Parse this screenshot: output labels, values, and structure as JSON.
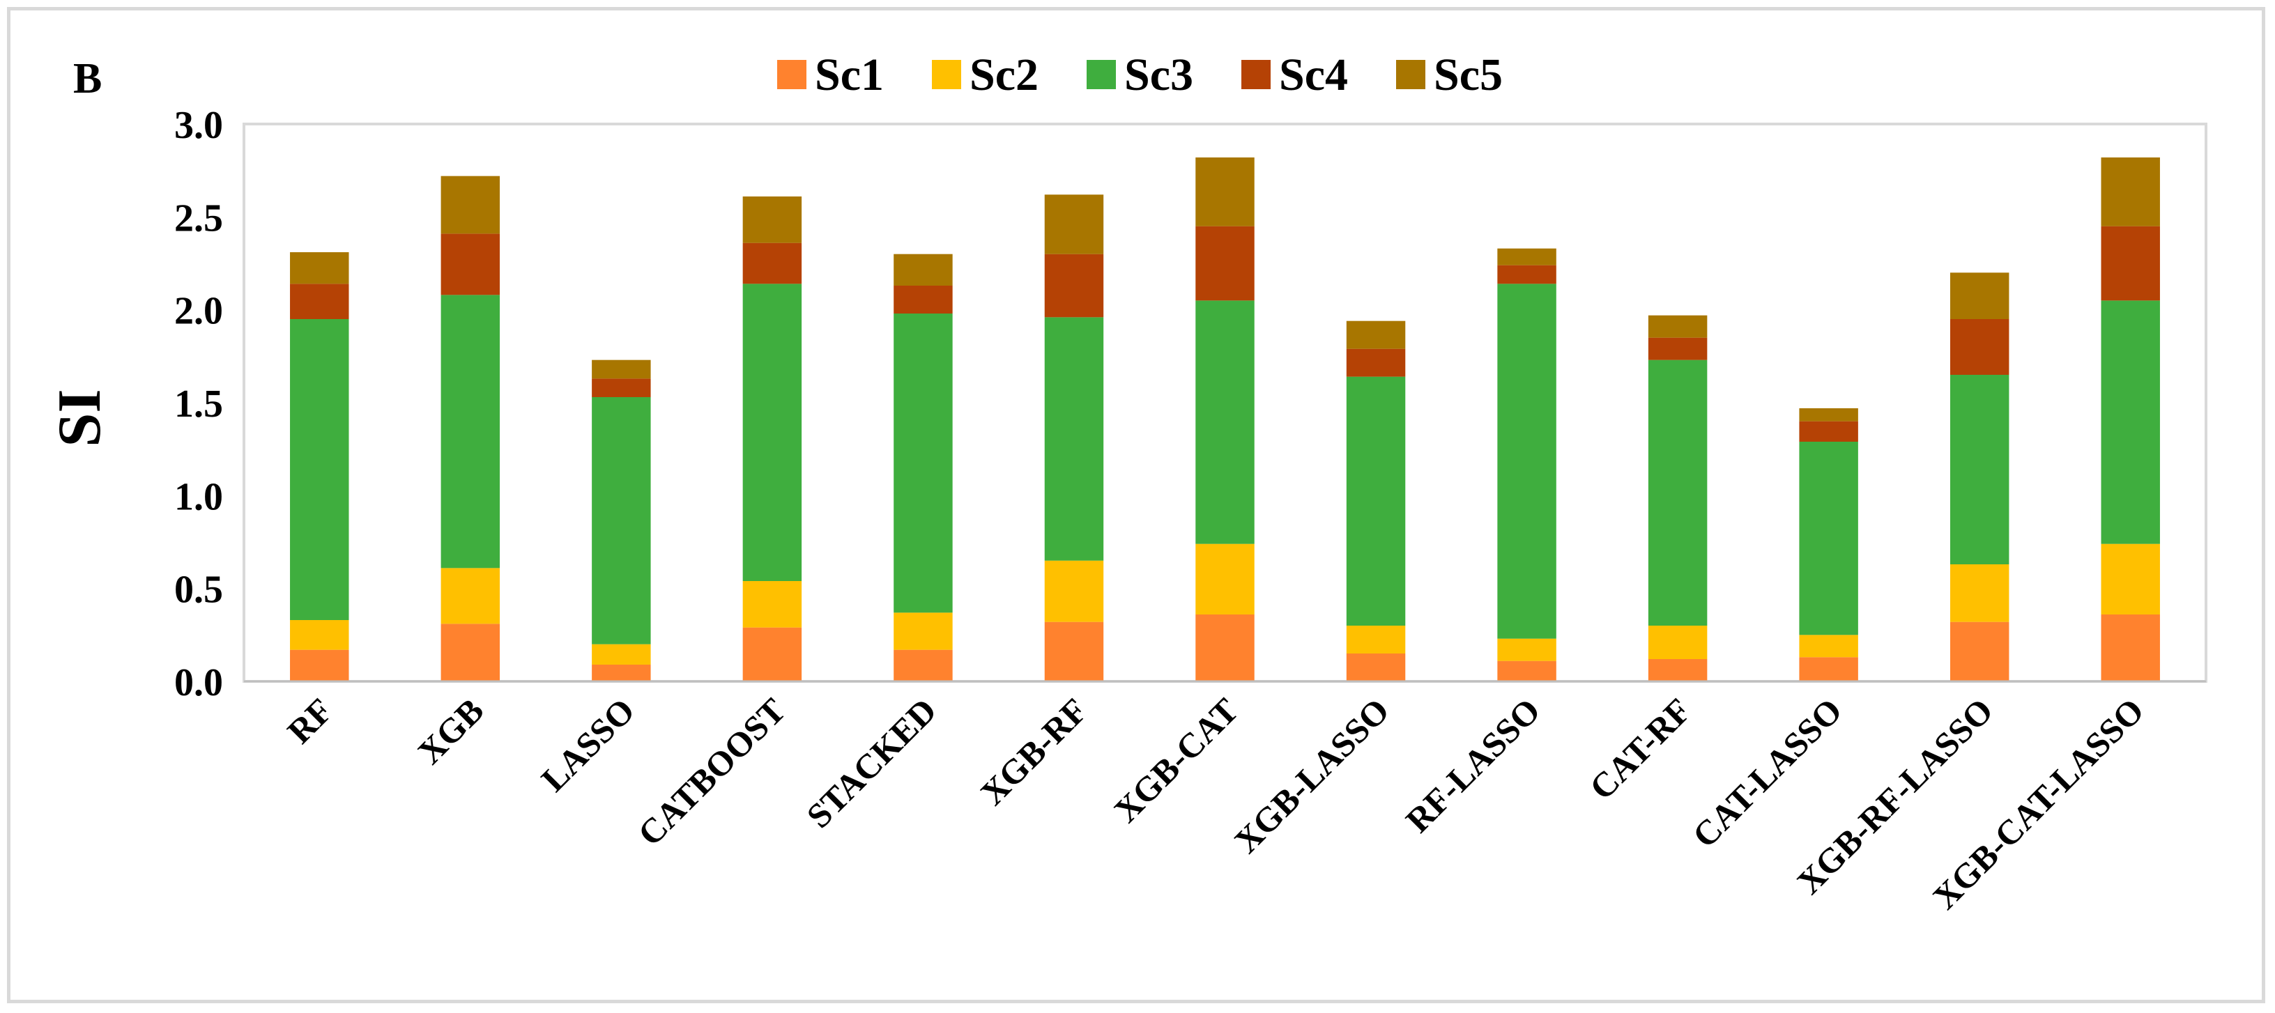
{
  "panel_label": "B",
  "chart_data": {
    "type": "bar",
    "stacked": true,
    "title": "",
    "xlabel": "",
    "ylabel": "SI",
    "ylim": [
      0,
      3.0
    ],
    "yticks": [
      "0.0",
      "0.5",
      "1.0",
      "1.5",
      "2.0",
      "2.5",
      "3.0"
    ],
    "grid": false,
    "legend_position": "top",
    "categories": [
      "RF",
      "XGB",
      "LASSO",
      "CATBOOST",
      "STACKED",
      "XGB-RF",
      "XGB-CAT",
      "XGB-LASSO",
      "RF-LASSO",
      "CAT-RF",
      "CAT-LASSO",
      "XGB-RF-LASSO",
      "XGB-CAT-LASSO"
    ],
    "series": [
      {
        "name": "Sc1",
        "color": "#FF822E",
        "values": [
          0.17,
          0.31,
          0.09,
          0.29,
          0.17,
          0.32,
          0.36,
          0.15,
          0.11,
          0.12,
          0.13,
          0.32,
          0.36
        ]
      },
      {
        "name": "Sc2",
        "color": "#FFC000",
        "values": [
          0.16,
          0.3,
          0.11,
          0.25,
          0.2,
          0.33,
          0.38,
          0.15,
          0.12,
          0.18,
          0.12,
          0.31,
          0.38
        ]
      },
      {
        "name": "Sc3",
        "color": "#3FAE3E",
        "values": [
          1.62,
          1.47,
          1.33,
          1.6,
          1.61,
          1.31,
          1.31,
          1.34,
          1.91,
          1.43,
          1.04,
          1.02,
          1.31
        ]
      },
      {
        "name": "Sc4",
        "color": "#B54205",
        "values": [
          0.19,
          0.33,
          0.1,
          0.22,
          0.15,
          0.34,
          0.4,
          0.15,
          0.1,
          0.12,
          0.11,
          0.3,
          0.4
        ]
      },
      {
        "name": "Sc5",
        "color": "#A87600",
        "values": [
          0.17,
          0.31,
          0.1,
          0.25,
          0.17,
          0.32,
          0.37,
          0.15,
          0.09,
          0.12,
          0.07,
          0.25,
          0.37
        ]
      }
    ]
  }
}
